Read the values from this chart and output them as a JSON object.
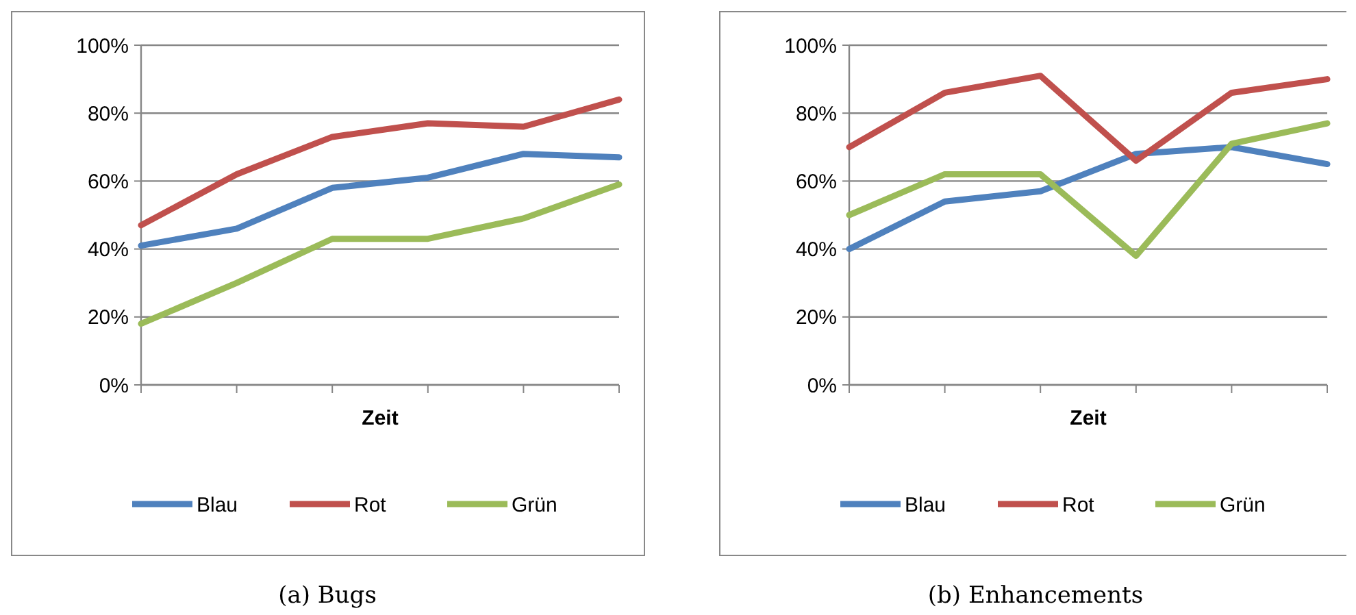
{
  "chart_data": [
    {
      "type": "line",
      "title": "(a) Bugs",
      "xlabel": "Zeit",
      "categories": [
        null,
        null,
        null,
        null,
        null,
        null
      ],
      "ylim": [
        0,
        100
      ],
      "yticks": [
        {
          "value": 0,
          "label": "0%"
        },
        {
          "value": 20,
          "label": "20%"
        },
        {
          "value": 40,
          "label": "40%"
        },
        {
          "value": 60,
          "label": "60%"
        },
        {
          "value": 80,
          "label": "80%"
        },
        {
          "value": 100,
          "label": "100%"
        }
      ],
      "grid": "y",
      "legend": "bottom",
      "marker": "none",
      "line_style": "solid",
      "series": [
        {
          "name": "Blau",
          "color": "#4f81bd",
          "values": [
            41,
            46,
            58,
            61,
            68,
            67
          ]
        },
        {
          "name": "Rot",
          "color": "#c0504d",
          "values": [
            47,
            62,
            73,
            77,
            76,
            84
          ]
        },
        {
          "name": "Grün",
          "color": "#9bbb59",
          "values": [
            18,
            30,
            43,
            43,
            49,
            59
          ]
        }
      ]
    },
    {
      "type": "line",
      "title": "(b) Enhancements",
      "xlabel": "Zeit",
      "categories": [
        null,
        null,
        null,
        null,
        null,
        null
      ],
      "ylim": [
        0,
        100
      ],
      "yticks": [
        {
          "value": 0,
          "label": "0%"
        },
        {
          "value": 20,
          "label": "20%"
        },
        {
          "value": 40,
          "label": "40%"
        },
        {
          "value": 60,
          "label": "60%"
        },
        {
          "value": 80,
          "label": "80%"
        },
        {
          "value": 100,
          "label": "100%"
        }
      ],
      "grid": "y",
      "legend": "bottom",
      "marker": "none",
      "line_style": "solid",
      "series": [
        {
          "name": "Blau",
          "color": "#4f81bd",
          "values": [
            40,
            54,
            57,
            68,
            70,
            65
          ]
        },
        {
          "name": "Rot",
          "color": "#c0504d",
          "values": [
            70,
            86,
            91,
            66,
            86,
            90
          ]
        },
        {
          "name": "Grün",
          "color": "#9bbb59",
          "values": [
            50,
            62,
            62,
            38,
            71,
            77
          ]
        }
      ]
    }
  ]
}
